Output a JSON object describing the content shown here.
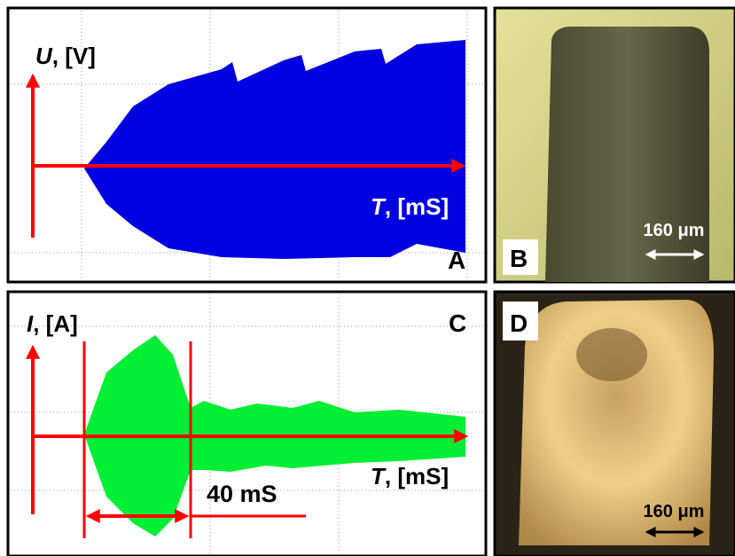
{
  "panels": [
    {
      "label": "A",
      "y_symbol": "U",
      "y_unit": ", [V]",
      "x_symbol": "T",
      "x_unit": ", [mS]"
    },
    {
      "label": "B",
      "scale": "160 μm"
    },
    {
      "label": "C",
      "y_symbol": "I",
      "y_unit": ", [A]",
      "x_symbol": "T",
      "x_unit": ", [mS]",
      "duration": "40 mS"
    },
    {
      "label": "D",
      "scale": "160 μm"
    }
  ]
}
